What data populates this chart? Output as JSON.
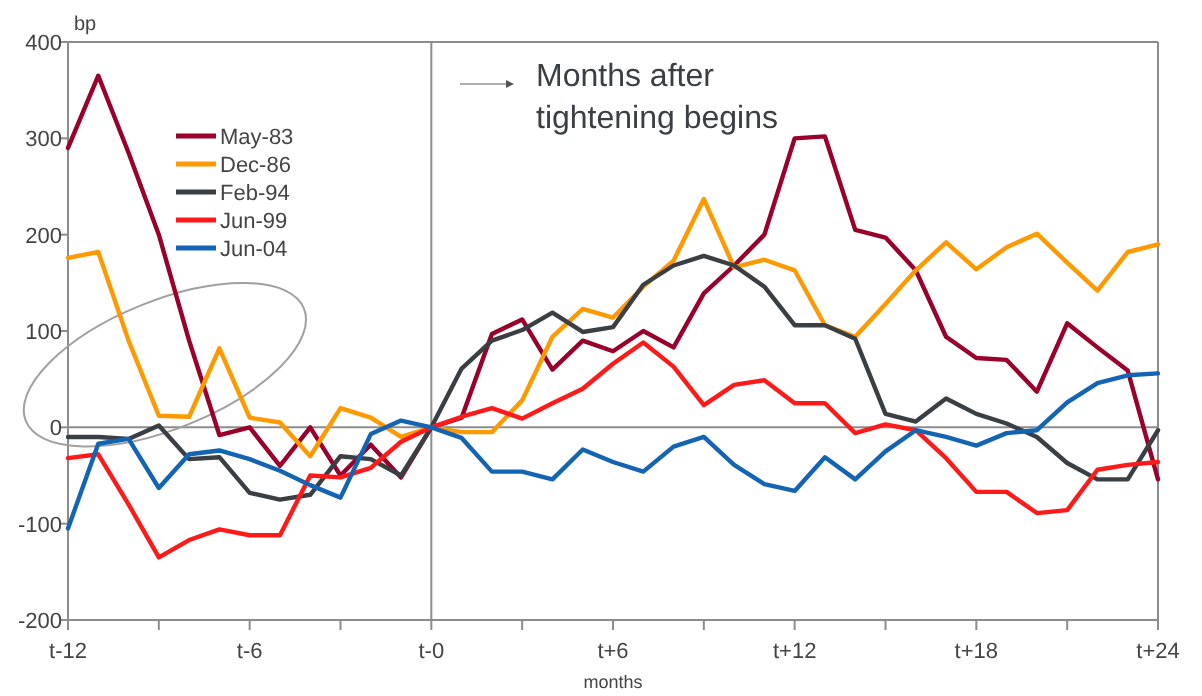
{
  "chart_data": {
    "type": "line",
    "xlabel": "months",
    "ylabel": "bp",
    "annotations": [
      "Months after tightening begins"
    ],
    "categories": [
      "t-12",
      null,
      null,
      null,
      null,
      null,
      "t-6",
      null,
      null,
      null,
      null,
      null,
      "t-0",
      null,
      null,
      null,
      null,
      null,
      "t+6",
      null,
      null,
      null,
      null,
      null,
      "t+12",
      null,
      null,
      null,
      null,
      null,
      "t+18",
      null,
      null,
      null,
      null,
      null,
      "t+24"
    ],
    "ylim": [
      -200,
      400
    ],
    "yticks": [
      -200,
      -100,
      0,
      100,
      200,
      300,
      400
    ],
    "grid": false,
    "legend": "top left",
    "marker": "none",
    "line_style": "solid",
    "ref_lines": [
      {
        "axis": "x",
        "value": "t-0",
        "color": "#8c8c8c"
      },
      {
        "axis": "y",
        "value": 0,
        "color": "#8c8c8c"
      }
    ],
    "series": [
      {
        "name": "May-83",
        "color": "#99002b",
        "values": [
          290,
          365,
          285,
          200,
          90,
          -8,
          0,
          -40,
          0,
          -50,
          -18,
          -52,
          0,
          10,
          97,
          112,
          60,
          90,
          79,
          100,
          83,
          139,
          168,
          200,
          300,
          302,
          205,
          197,
          163,
          94,
          72,
          70,
          37,
          108,
          83,
          59,
          -54
        ]
      },
      {
        "name": "Dec-86",
        "color": "#ff9900",
        "values": [
          176,
          182,
          90,
          12,
          11,
          82,
          10,
          5,
          -30,
          20,
          10,
          -10,
          0,
          -5,
          -5,
          28,
          94,
          123,
          114,
          146,
          173,
          237,
          166,
          174,
          163,
          106,
          94,
          128,
          163,
          192,
          164,
          187,
          201,
          171,
          142,
          182,
          190
        ]
      },
      {
        "name": "Feb-94",
        "color": "#3a3f44",
        "values": [
          -10,
          -10,
          -12,
          2,
          -33,
          -31,
          -68,
          -75,
          -70,
          -30,
          -33,
          -50,
          0,
          61,
          90,
          101,
          119,
          99,
          104,
          148,
          168,
          178,
          168,
          146,
          106,
          106,
          92,
          14,
          6,
          30,
          14,
          4,
          -10,
          -37,
          -54,
          -54,
          -3
        ]
      },
      {
        "name": "Jun-99",
        "color": "#ff1a1a",
        "values": [
          -32,
          -28,
          -80,
          -135,
          -117,
          -106,
          -112,
          -112,
          -50,
          -52,
          -42,
          -15,
          0,
          11,
          20,
          9,
          25,
          40,
          66,
          88,
          63,
          23,
          44,
          49,
          25,
          25,
          -6,
          3,
          -3,
          -32,
          -67,
          -67,
          -89,
          -86,
          -44,
          -39,
          -36
        ]
      },
      {
        "name": "Jun-04",
        "color": "#1464b4",
        "values": [
          -105,
          -17,
          -12,
          -63,
          -28,
          -24,
          -33,
          -45,
          -60,
          -73,
          -7,
          7,
          0,
          -11,
          -46,
          -46,
          -54,
          -23,
          -36,
          -46,
          -20,
          -10,
          -39,
          -59,
          -66,
          -31,
          -54,
          -25,
          -3,
          -10,
          -19,
          -6,
          -3,
          26,
          46,
          54,
          56
        ]
      }
    ]
  }
}
